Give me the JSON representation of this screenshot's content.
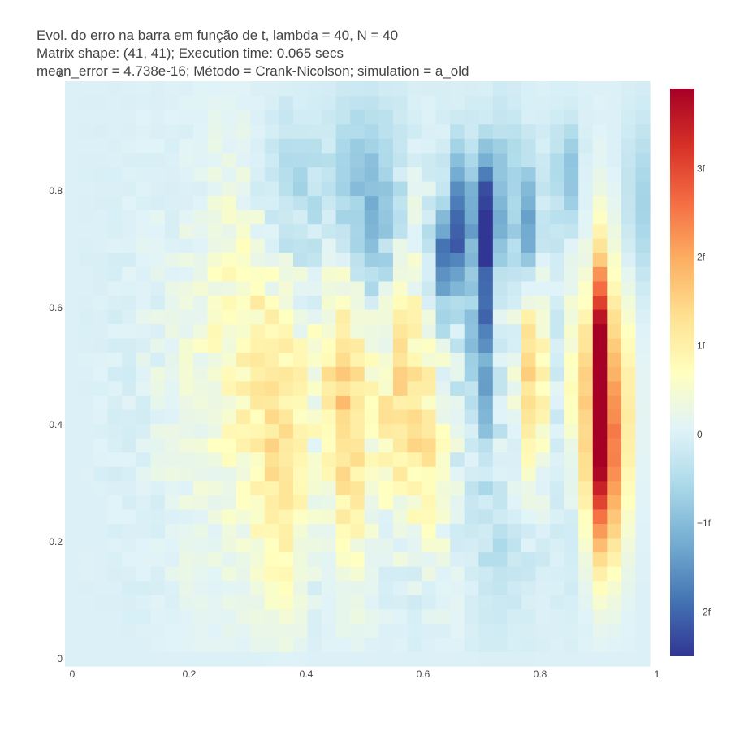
{
  "chart_data": {
    "type": "heatmap",
    "title_lines": [
      "Evol. do erro na barra em função de t, lambda = 40, N = 40",
      "Matrix shape: (41, 41); Execution time: 0.065 secs",
      "mean_error = 4.738e-16; Método = Crank-Nicolson; simulation = a_old"
    ],
    "xlabel": "",
    "ylabel": "",
    "x_range": [
      0,
      1
    ],
    "y_range": [
      0,
      1
    ],
    "x_ticks": [
      "0",
      "0.2",
      "0.4",
      "0.6",
      "0.8",
      "1"
    ],
    "y_ticks": [
      "0",
      "0.2",
      "0.4",
      "0.6",
      "0.8",
      "1"
    ],
    "colorbar": {
      "min": -2.5e-15,
      "max": 3.9e-15,
      "ticks": [
        {
          "value": -2e-15,
          "label": "−2f"
        },
        {
          "value": -1e-15,
          "label": "−1f"
        },
        {
          "value": 0,
          "label": "0"
        },
        {
          "value": 1e-15,
          "label": "1f"
        },
        {
          "value": 2e-15,
          "label": "2f"
        },
        {
          "value": 3e-15,
          "label": "3f"
        }
      ],
      "colorscale": "RdYlBu (reversed)",
      "colors": [
        "#313695",
        "#4575b4",
        "#74add1",
        "#abd9e9",
        "#e0f3f8",
        "#ffffbf",
        "#fee090",
        "#fdae61",
        "#f46d43",
        "#d73027",
        "#a50026"
      ]
    },
    "grid_size": [
      41,
      41
    ],
    "features": [
      {
        "x": 0.93,
        "y": 0.55,
        "amp": 3.8,
        "sx": 0.012,
        "sy": 0.12
      },
      {
        "x": 0.93,
        "y": 0.38,
        "amp": 2.4,
        "sx": 0.018,
        "sy": 0.1
      },
      {
        "x": 0.93,
        "y": 0.25,
        "amp": 1.5,
        "sx": 0.02,
        "sy": 0.1
      },
      {
        "x": 0.89,
        "y": 0.5,
        "amp": 1.3,
        "sx": 0.015,
        "sy": 0.12
      },
      {
        "x": 0.97,
        "y": 0.45,
        "amp": 1.0,
        "sx": 0.015,
        "sy": 0.15
      },
      {
        "x": 0.81,
        "y": 0.5,
        "amp": 1.8,
        "sx": 0.012,
        "sy": 0.12
      },
      {
        "x": 0.72,
        "y": 0.78,
        "amp": -2.4,
        "sx": 0.012,
        "sy": 0.08
      },
      {
        "x": 0.72,
        "y": 0.6,
        "amp": -1.6,
        "sx": 0.012,
        "sy": 0.12
      },
      {
        "x": 0.68,
        "y": 0.78,
        "amp": -1.9,
        "sx": 0.012,
        "sy": 0.07
      },
      {
        "x": 0.65,
        "y": 0.7,
        "amp": -1.7,
        "sx": 0.015,
        "sy": 0.07
      },
      {
        "x": 0.76,
        "y": 0.8,
        "amp": -1.6,
        "sx": 0.012,
        "sy": 0.1
      },
      {
        "x": 0.8,
        "y": 0.75,
        "amp": -1.5,
        "sx": 0.012,
        "sy": 0.08
      },
      {
        "x": 0.87,
        "y": 0.85,
        "amp": -1.0,
        "sx": 0.015,
        "sy": 0.06
      },
      {
        "x": 0.99,
        "y": 0.8,
        "amp": -1.1,
        "sx": 0.01,
        "sy": 0.1
      },
      {
        "x": 0.57,
        "y": 0.45,
        "amp": 1.6,
        "sx": 0.025,
        "sy": 0.15
      },
      {
        "x": 0.48,
        "y": 0.45,
        "amp": 1.2,
        "sx": 0.03,
        "sy": 0.18
      },
      {
        "x": 0.38,
        "y": 0.4,
        "amp": 1.3,
        "sx": 0.03,
        "sy": 0.2
      },
      {
        "x": 0.28,
        "y": 0.5,
        "amp": 0.7,
        "sx": 0.06,
        "sy": 0.25
      },
      {
        "x": 0.52,
        "y": 0.8,
        "amp": -0.8,
        "sx": 0.05,
        "sy": 0.12
      },
      {
        "x": 0.4,
        "y": 0.82,
        "amp": -0.5,
        "sx": 0.06,
        "sy": 0.1
      },
      {
        "x": 0.62,
        "y": 0.35,
        "amp": 0.8,
        "sx": 0.02,
        "sy": 0.1
      },
      {
        "x": 0.78,
        "y": 0.2,
        "amp": -0.3,
        "sx": 0.05,
        "sy": 0.1
      }
    ]
  }
}
